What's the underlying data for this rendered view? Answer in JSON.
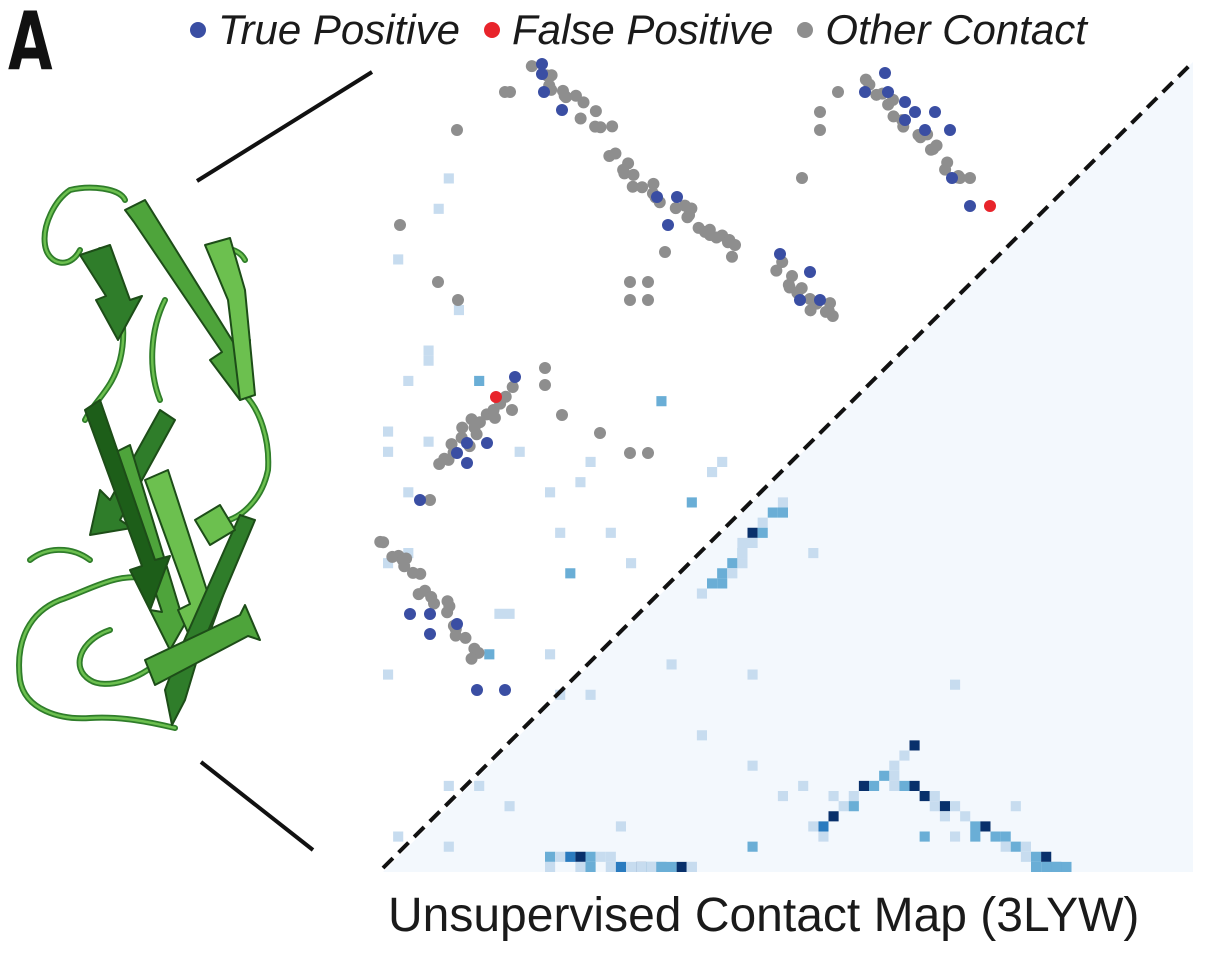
{
  "panel_label": "A",
  "legend": {
    "true_positive": {
      "label": "True Positive",
      "color": "#3a4ea3"
    },
    "false_positive": {
      "label": "False Positive",
      "color": "#e8242b"
    },
    "other_contact": {
      "label": "Other Contact",
      "color": "#8e8e8e"
    }
  },
  "caption": "Unsupervised Contact Map (3LYW)",
  "protein_color": "#3b8f35",
  "heatmap_colors": [
    "#f3f8fd",
    "#c7dcef",
    "#6aaed6",
    "#2a7bbf",
    "#08306b"
  ]
}
